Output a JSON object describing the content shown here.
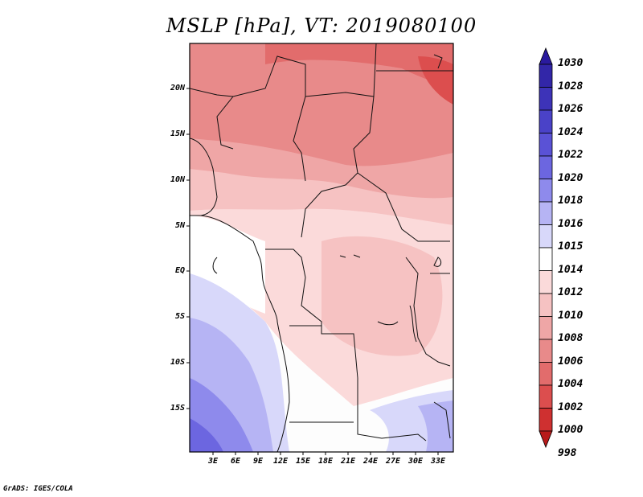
{
  "title": "MSLP [hPa], VT: 2019080100",
  "credit": "GrADS: IGES/COLA",
  "map": {
    "variable": "MSLP",
    "units": "hPa",
    "valid_time": "2019080100",
    "lat_labels": [
      "20N",
      "15N",
      "10N",
      "5N",
      "EQ",
      "5S",
      "10S",
      "15S"
    ],
    "lon_labels": [
      "3E",
      "6E",
      "9E",
      "12E",
      "15E",
      "18E",
      "21E",
      "24E",
      "27E",
      "30E",
      "33E"
    ]
  },
  "colorbar": {
    "labels": [
      "1030",
      "1028",
      "1026",
      "1024",
      "1022",
      "1020",
      "1018",
      "1016",
      "1015",
      "1014",
      "1012",
      "1010",
      "1008",
      "1006",
      "1004",
      "1002",
      "1000",
      "998"
    ],
    "colors": [
      "#2a1a9e",
      "#3226a8",
      "#3d33b8",
      "#4a42c8",
      "#5a52d6",
      "#6c66e0",
      "#8e8aec",
      "#b6b4f4",
      "#d8d8fa",
      "#ffffff",
      "#fbdada",
      "#f6c2c2",
      "#efa6a6",
      "#e88a8a",
      "#e26c6c",
      "#dc4e4e",
      "#cf3030",
      "#b81a1a"
    ]
  }
}
